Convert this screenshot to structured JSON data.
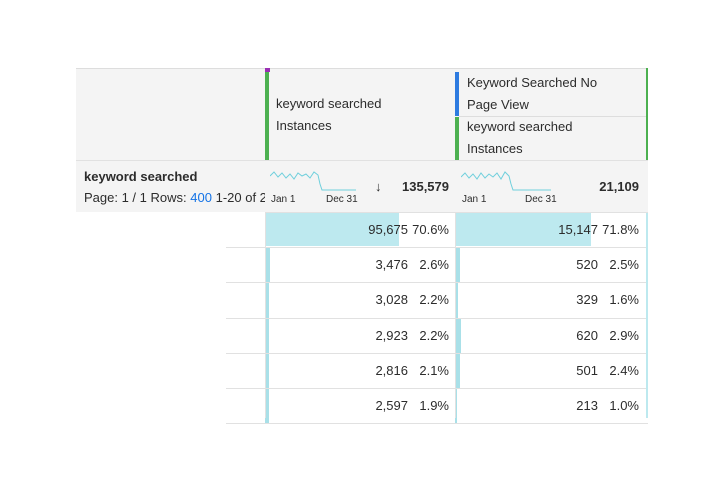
{
  "header": {
    "columns": [
      "keyword searched Instances",
      "Keyword Searched No Page View",
      "keyword searched Instances"
    ]
  },
  "summary": {
    "dimension": "keyword searched",
    "page": "Page: 1 / 1",
    "rows_label": "Rows:",
    "rows_count": "400",
    "range": "1-20 of 2",
    "spark_start": "Jan 1",
    "spark_end": "Dec 31",
    "sort_icon": "↓",
    "totals": [
      {
        "value": 135579,
        "label": "135,579"
      },
      {
        "value": 21109,
        "label": "21,109"
      }
    ]
  },
  "table": {
    "rows": [
      [
        {
          "count": {
            "value": 95675,
            "label": "95,675"
          },
          "share": {
            "value": 70.6,
            "label": "70.6%"
          }
        },
        {
          "count": {
            "value": 15147,
            "label": "15,147"
          },
          "share": {
            "value": 71.8,
            "label": "71.8%"
          }
        }
      ],
      [
        {
          "count": {
            "value": 3476,
            "label": "3,476"
          },
          "share": {
            "value": 2.6,
            "label": "2.6%"
          }
        },
        {
          "count": 520,
          "share": {
            "value": 2.5,
            "label": "2.5%"
          }
        }
      ],
      [
        {
          "count": {
            "value": 3028,
            "label": "3,028"
          },
          "share": {
            "value": 2.2,
            "label": "2.2%"
          }
        },
        {
          "count": 329,
          "share": {
            "value": 1.6,
            "label": "1.6%"
          }
        }
      ],
      [
        {
          "count": {
            "value": 2923,
            "label": "2,923"
          },
          "share": {
            "value": 2.2,
            "label": "2.2%"
          }
        },
        {
          "count": 620,
          "share": {
            "value": 2.9,
            "label": "2.9%"
          }
        }
      ],
      [
        {
          "count": {
            "value": 2816,
            "label": "2,816"
          },
          "share": {
            "value": 2.1,
            "label": "2.1%"
          }
        },
        {
          "count": 501,
          "share": {
            "value": 2.4,
            "label": "2.4%"
          }
        }
      ],
      [
        {
          "count": {
            "value": 2597,
            "label": "2,597"
          },
          "share": {
            "value": 1.9,
            "label": "1.9%"
          }
        },
        {
          "count": 213,
          "share": {
            "value": 1.0,
            "label": "1.0%"
          }
        }
      ]
    ]
  }
}
